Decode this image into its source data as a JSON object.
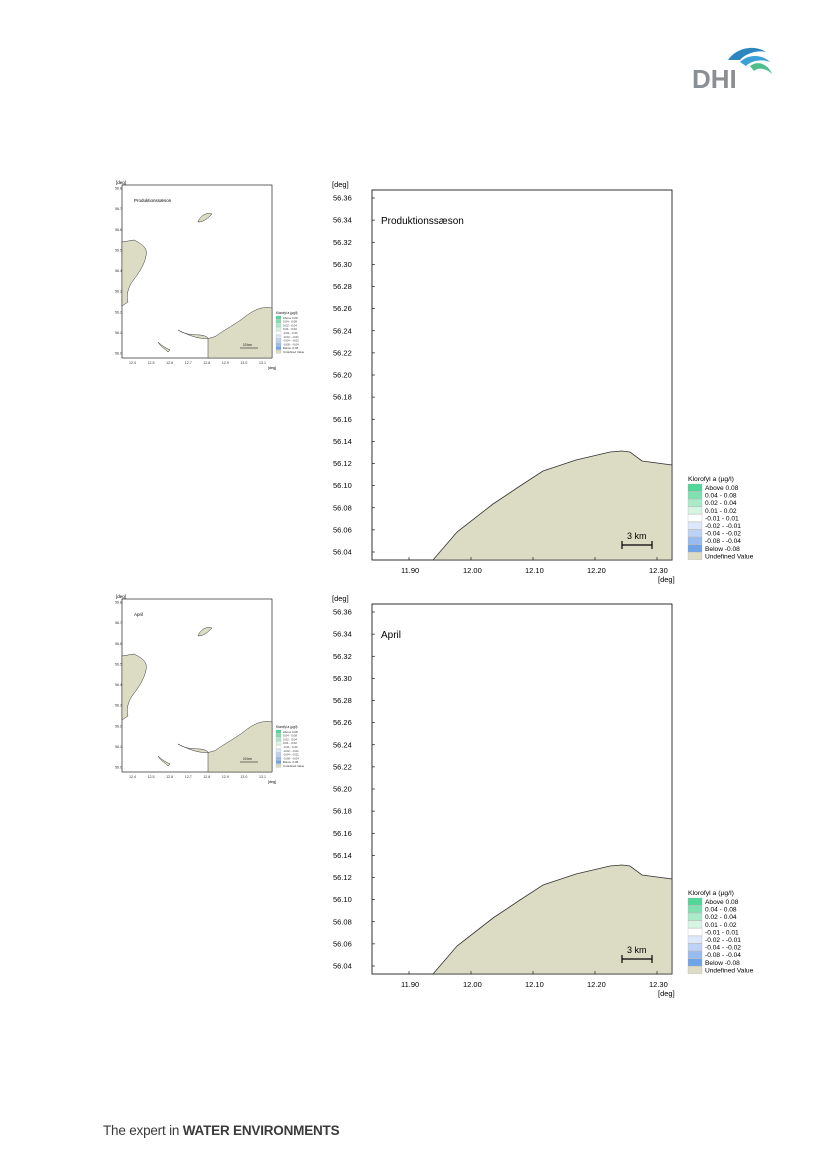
{
  "brand": {
    "logo_text": "DHI",
    "footer_prefix": "The expert in ",
    "footer_emphasis": "WATER ENVIRONMENTS",
    "colors": {
      "logo_blue": "#2e86c1",
      "logo_green": "#4fc08d",
      "logo_gray": "#8a8f94"
    }
  },
  "colors": {
    "land": "#dcdcc4",
    "coast": "#333333"
  },
  "axis_unit": "[deg]",
  "y_ticks": [
    "56.36",
    "56.34",
    "56.32",
    "56.30",
    "56.28",
    "56.26",
    "56.24",
    "56.22",
    "56.20",
    "56.18",
    "56.16",
    "56.14",
    "56.12",
    "56.10",
    "56.08",
    "56.06",
    "56.04"
  ],
  "x_ticks": [
    "11.90",
    "12.00",
    "12.10",
    "12.20",
    "12.30"
  ],
  "legend": {
    "title": "Klorofyl a (µg/l)",
    "items": [
      {
        "label": "Above  0.08",
        "color": "#52d69a"
      },
      {
        "label": "0.04 -  0.08",
        "color": "#7fe0b0"
      },
      {
        "label": "0.02 -  0.04",
        "color": "#a9ebc9"
      },
      {
        "label": "0.01 -  0.02",
        "color": "#d6f5e3"
      },
      {
        "label": "-0.01 -  0.01",
        "color": "#ffffff"
      },
      {
        "label": "-0.02 - -0.01",
        "color": "#dde9fb"
      },
      {
        "label": "-0.04 - -0.02",
        "color": "#bcd3f6"
      },
      {
        "label": "-0.08 - -0.04",
        "color": "#98bcf0"
      },
      {
        "label": "Below  -0.08",
        "color": "#6fa3e8"
      },
      {
        "label": "Undefined Value",
        "color": "#dcdcc4"
      }
    ]
  },
  "scale_bar": "3 km",
  "mini": {
    "y_ticks": [
      "56.8",
      "56.7",
      "56.6",
      "56.5",
      "56.4",
      "56.3",
      "56.2",
      "56.1",
      "56.0"
    ],
    "x_ticks": [
      "12.4",
      "12.5",
      "12.6",
      "12.7",
      "12.8",
      "12.9",
      "13.0",
      "13.1"
    ],
    "scale_bar": "10 km"
  },
  "panels": [
    {
      "title": "Produktionssæson"
    },
    {
      "title": "April"
    }
  ]
}
